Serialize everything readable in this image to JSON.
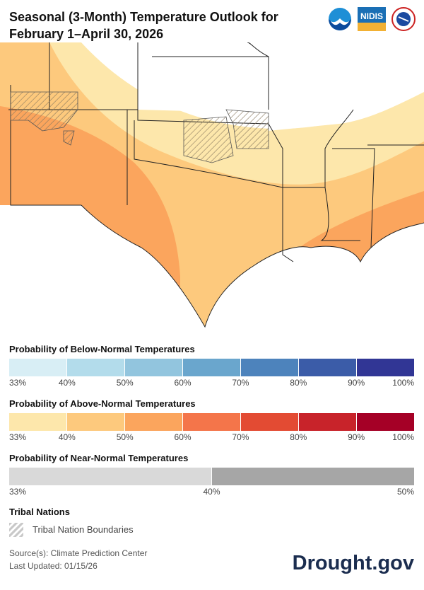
{
  "title_line1": "Seasonal (3-Month) Temperature Outlook for",
  "title_line2": "February 1–April 30, 2026",
  "logos": [
    "NOAA",
    "NIDIS",
    "National Weather Service"
  ],
  "map": {
    "colors": {
      "above_33_40": "#fde7ab",
      "above_40_50": "#fdc97d",
      "above_50_60": "#fba55d",
      "background": "#ffffff"
    }
  },
  "legend": {
    "below": {
      "title": "Probability of Below-Normal Temperatures",
      "colors": [
        "#d8eef5",
        "#b3dceb",
        "#92c5de",
        "#6aa6cd",
        "#4d83bc",
        "#3b5ca8",
        "#313695"
      ],
      "ticks": [
        "33%",
        "40%",
        "50%",
        "60%",
        "70%",
        "80%",
        "90%",
        "100%"
      ]
    },
    "above": {
      "title": "Probability of Above-Normal Temperatures",
      "colors": [
        "#fde7ab",
        "#fdc97d",
        "#fba55d",
        "#f4754a",
        "#e34b33",
        "#c8232a",
        "#a50026"
      ],
      "ticks": [
        "33%",
        "40%",
        "50%",
        "60%",
        "70%",
        "80%",
        "90%",
        "100%"
      ]
    },
    "near": {
      "title": "Probability of Near-Normal Temperatures",
      "colors": [
        "#d9d9d9",
        "#a6a6a6"
      ],
      "ticks": [
        "33%",
        "40%",
        "50%"
      ]
    },
    "tribal": {
      "title": "Tribal Nations",
      "label": "Tribal Nation Boundaries"
    }
  },
  "source": "Source(s): Climate Prediction Center",
  "updated": "Last Updated: 01/15/26",
  "brand": "Drought.gov"
}
